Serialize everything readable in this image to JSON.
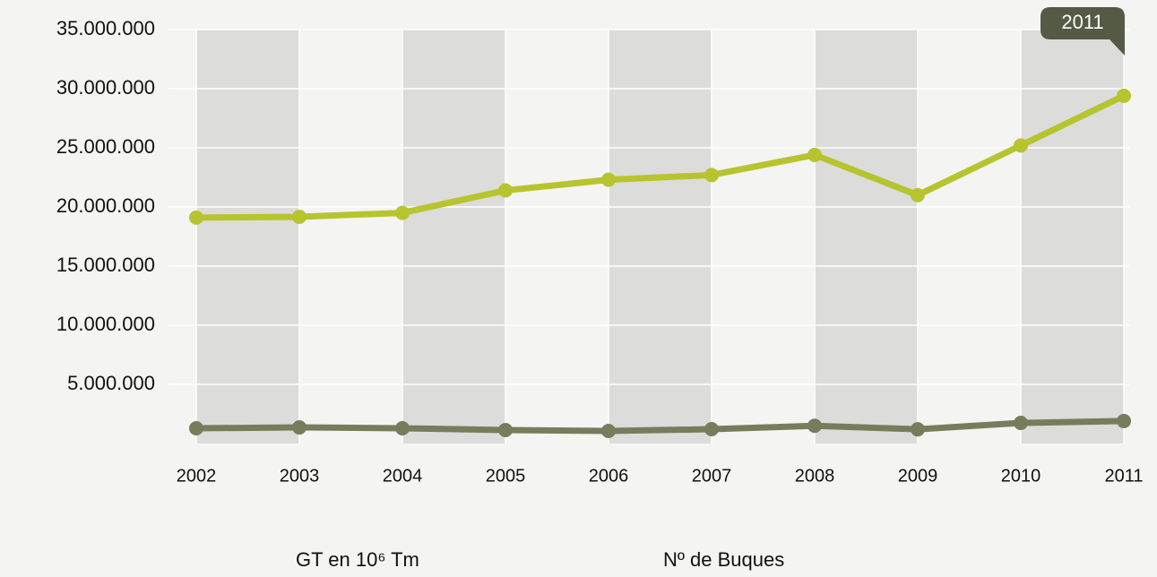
{
  "chart_data": {
    "type": "line",
    "categories": [
      "2002",
      "2003",
      "2004",
      "2005",
      "2006",
      "2007",
      "2008",
      "2009",
      "2010",
      "2011"
    ],
    "series": [
      {
        "name": "GT en 10⁶ Tm",
        "color": "#b7c42f",
        "values": [
          19100000,
          19170000,
          19500000,
          21400000,
          22300000,
          22700000,
          24400000,
          21000000,
          25200000,
          29400000
        ]
      },
      {
        "name": "Nº de Buques",
        "color": "#777d5c",
        "values": [
          1290000,
          1360000,
          1290000,
          1140000,
          1060000,
          1210000,
          1500000,
          1200000,
          1740000,
          1900000
        ]
      }
    ],
    "ylim": [
      0,
      35000000
    ],
    "yticks": [
      {
        "value": 5000000,
        "label": "5.000.000"
      },
      {
        "value": 10000000,
        "label": "10.000.000"
      },
      {
        "value": 15000000,
        "label": "15.000.000"
      },
      {
        "value": 20000000,
        "label": "20.000.000"
      },
      {
        "value": 25000000,
        "label": "25.000.000"
      },
      {
        "value": 30000000,
        "label": "30.000.000"
      },
      {
        "value": 35000000,
        "label": "35.000.000"
      }
    ],
    "grid": true
  }
}
